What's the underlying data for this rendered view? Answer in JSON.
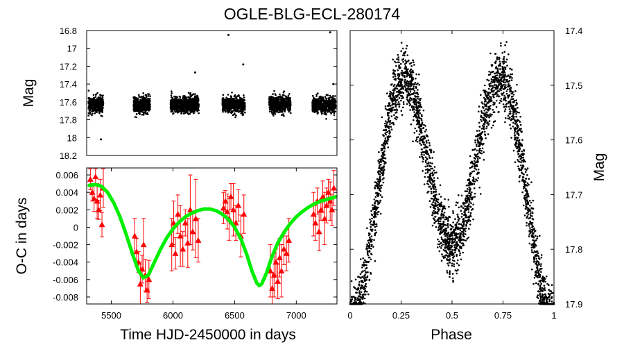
{
  "chart_data": [
    {
      "type": "scatter",
      "panel": "light-curve",
      "title": "OGLE-BLG-ECL-280174",
      "xlabel": "",
      "ylabel": "Mag",
      "xlim": [
        5300,
        7330
      ],
      "ylim": [
        16.8,
        18.2
      ],
      "y_inverted": true,
      "yticks": [
        "16.8",
        "17",
        "17.2",
        "17.4",
        "17.6",
        "17.8",
        "18",
        "18.2"
      ],
      "point_color": "#000000",
      "seasons": [
        {
          "x_start": 5315,
          "x_end": 5435,
          "center_mag": 17.63,
          "spread": 0.1
        },
        {
          "x_start": 5680,
          "x_end": 5815,
          "center_mag": 17.63,
          "spread": 0.1
        },
        {
          "x_start": 5980,
          "x_end": 6210,
          "center_mag": 17.63,
          "spread": 0.1
        },
        {
          "x_start": 6400,
          "x_end": 6585,
          "center_mag": 17.63,
          "spread": 0.1
        },
        {
          "x_start": 6780,
          "x_end": 6955,
          "center_mag": 17.63,
          "spread": 0.1
        },
        {
          "x_start": 7130,
          "x_end": 7320,
          "center_mag": 17.63,
          "spread": 0.1
        }
      ],
      "outliers": [
        {
          "x": 6450,
          "y": 16.85
        },
        {
          "x": 6570,
          "y": 17.18
        },
        {
          "x": 7275,
          "y": 16.82
        },
        {
          "x": 6180,
          "y": 17.27
        },
        {
          "x": 5415,
          "y": 18.02
        },
        {
          "x": 7300,
          "y": 17.4
        }
      ]
    },
    {
      "type": "scatter",
      "panel": "o-c",
      "xlabel": "Time HJD-2450000 in days",
      "ylabel": "O-C in days",
      "xlim": [
        5300,
        7330
      ],
      "ylim": [
        -0.0088,
        0.0068
      ],
      "xticks": [
        "5500",
        "6000",
        "6500",
        "7000"
      ],
      "xtick_values": [
        5500,
        6000,
        6500,
        7000
      ],
      "yticks": [
        "0.006",
        "0.004",
        "0.002",
        "0",
        "-0.002",
        "-0.004",
        "-0.006",
        "-0.008"
      ],
      "ytick_values": [
        0.006,
        0.004,
        0.002,
        0,
        -0.002,
        -0.004,
        -0.006,
        -0.008
      ],
      "points_color": "#ff0000",
      "fit_color": "#00ee00",
      "points": [
        {
          "x": 5330,
          "y": 0.0055,
          "err": 0.0012
        },
        {
          "x": 5345,
          "y": 0.004,
          "err": 0.001
        },
        {
          "x": 5360,
          "y": 0.0033,
          "err": 0.0015
        },
        {
          "x": 5372,
          "y": 0.0058,
          "err": 0.0009
        },
        {
          "x": 5385,
          "y": 0.003,
          "err": 0.002
        },
        {
          "x": 5398,
          "y": 0.002,
          "err": 0.0011
        },
        {
          "x": 5410,
          "y": 0.0037,
          "err": 0.0018
        },
        {
          "x": 5424,
          "y": 0.0003,
          "err": 0.0014
        },
        {
          "x": 5435,
          "y": 0.0045,
          "err": 0.0022
        },
        {
          "x": 5690,
          "y": -0.001,
          "err": 0.002
        },
        {
          "x": 5705,
          "y": -0.0028,
          "err": 0.0015
        },
        {
          "x": 5720,
          "y": -0.004,
          "err": 0.0012
        },
        {
          "x": 5735,
          "y": -0.0065,
          "err": 0.0025
        },
        {
          "x": 5750,
          "y": -0.0048,
          "err": 0.0016
        },
        {
          "x": 5762,
          "y": -0.002,
          "err": 0.003
        },
        {
          "x": 5775,
          "y": -0.0055,
          "err": 0.0018
        },
        {
          "x": 5790,
          "y": -0.0072,
          "err": 0.0014
        },
        {
          "x": 5805,
          "y": -0.006,
          "err": 0.0022
        },
        {
          "x": 5990,
          "y": -0.002,
          "err": 0.003
        },
        {
          "x": 6005,
          "y": 0.0005,
          "err": 0.0025
        },
        {
          "x": 6020,
          "y": -0.003,
          "err": 0.0018
        },
        {
          "x": 6040,
          "y": 0.0015,
          "err": 0.0022
        },
        {
          "x": 6060,
          "y": -0.001,
          "err": 0.0035
        },
        {
          "x": 6080,
          "y": -0.0025,
          "err": 0.002
        },
        {
          "x": 6100,
          "y": 0.0005,
          "err": 0.0015
        },
        {
          "x": 6120,
          "y": -0.0018,
          "err": 0.0028
        },
        {
          "x": 6140,
          "y": 0.002,
          "err": 0.004
        },
        {
          "x": 6160,
          "y": -0.0005,
          "err": 0.0021
        },
        {
          "x": 6185,
          "y": 0.001,
          "err": 0.0045
        },
        {
          "x": 6205,
          "y": -0.0015,
          "err": 0.0025
        },
        {
          "x": 6410,
          "y": 0.0022,
          "err": 0.0018
        },
        {
          "x": 6425,
          "y": 0.003,
          "err": 0.0012
        },
        {
          "x": 6440,
          "y": 0.0018,
          "err": 0.002
        },
        {
          "x": 6455,
          "y": 0.001,
          "err": 0.0025
        },
        {
          "x": 6470,
          "y": 0.0035,
          "err": 0.0015
        },
        {
          "x": 6490,
          "y": 0.002,
          "err": 0.003
        },
        {
          "x": 6510,
          "y": 0.0005,
          "err": 0.002
        },
        {
          "x": 6530,
          "y": 0.0025,
          "err": 0.0018
        },
        {
          "x": 6550,
          "y": -0.001,
          "err": 0.0024
        },
        {
          "x": 6575,
          "y": 0.0015,
          "err": 0.0022
        },
        {
          "x": 6790,
          "y": -0.005,
          "err": 0.003
        },
        {
          "x": 6805,
          "y": -0.007,
          "err": 0.0018
        },
        {
          "x": 6820,
          "y": -0.0055,
          "err": 0.0025
        },
        {
          "x": 6835,
          "y": -0.004,
          "err": 0.0015
        },
        {
          "x": 6850,
          "y": -0.0062,
          "err": 0.002
        },
        {
          "x": 6865,
          "y": -0.0035,
          "err": 0.0022
        },
        {
          "x": 6880,
          "y": -0.005,
          "err": 0.003
        },
        {
          "x": 6900,
          "y": -0.0025,
          "err": 0.0018
        },
        {
          "x": 6920,
          "y": -0.003,
          "err": 0.002
        },
        {
          "x": 6940,
          "y": -0.0015,
          "err": 0.0025
        },
        {
          "x": 7140,
          "y": 0.0015,
          "err": 0.0025
        },
        {
          "x": 7155,
          "y": 0.0005,
          "err": 0.002
        },
        {
          "x": 7170,
          "y": 0.003,
          "err": 0.0015
        },
        {
          "x": 7185,
          "y": -0.0005,
          "err": 0.0022
        },
        {
          "x": 7200,
          "y": 0.002,
          "err": 0.0012
        },
        {
          "x": 7215,
          "y": 0.0035,
          "err": 0.0018
        },
        {
          "x": 7230,
          "y": 0.001,
          "err": 0.003
        },
        {
          "x": 7245,
          "y": 0.0025,
          "err": 0.002
        },
        {
          "x": 7260,
          "y": 0.004,
          "err": 0.0015
        },
        {
          "x": 7275,
          "y": 0.003,
          "err": 0.0022
        },
        {
          "x": 7290,
          "y": 0.002,
          "err": 0.0018
        },
        {
          "x": 7305,
          "y": 0.0045,
          "err": 0.002
        }
      ],
      "fit_curve": {
        "x": [
          5320,
          5370,
          5420,
          5470,
          5520,
          5570,
          5620,
          5670,
          5720,
          5760,
          5800,
          5850,
          5900,
          5950,
          6000,
          6050,
          6100,
          6150,
          6200,
          6250,
          6300,
          6350,
          6400,
          6450,
          6500,
          6550,
          6600,
          6640,
          6680,
          6700,
          6720,
          6760,
          6800,
          6850,
          6900,
          6950,
          7000,
          7050,
          7100,
          7150,
          7200,
          7250,
          7300,
          7320
        ],
        "y": [
          0.0048,
          0.0049,
          0.0047,
          0.004,
          0.0028,
          0.0012,
          -0.0008,
          -0.003,
          -0.005,
          -0.0058,
          -0.0055,
          -0.004,
          -0.0025,
          -0.0012,
          -0.0002,
          0.0006,
          0.0012,
          0.0016,
          0.0019,
          0.0021,
          0.0021,
          0.0019,
          0.0015,
          0.0009,
          0.0,
          -0.0013,
          -0.0032,
          -0.005,
          -0.0064,
          -0.0067,
          -0.0065,
          -0.0052,
          -0.0035,
          -0.0018,
          -0.0006,
          0.0004,
          0.0012,
          0.0018,
          0.0023,
          0.0027,
          0.003,
          0.0032,
          0.0034,
          0.0035
        ]
      }
    },
    {
      "type": "scatter",
      "panel": "phased",
      "xlabel": "Phase",
      "ylabel": "Mag",
      "xlim": [
        0,
        1
      ],
      "ylim": [
        17.4,
        17.9
      ],
      "y_inverted": true,
      "xticks": [
        "0",
        "0.25",
        "0.5",
        "0.75",
        "1"
      ],
      "xtick_values": [
        0,
        0.25,
        0.5,
        0.75,
        1
      ],
      "yticks": [
        "17.4",
        "17.5",
        "17.6",
        "17.7",
        "17.8",
        "17.9"
      ],
      "ytick_values": [
        17.4,
        17.5,
        17.6,
        17.7,
        17.8,
        17.9
      ],
      "point_color": "#000000",
      "model": {
        "mean_mag": 17.675,
        "max_brightness_mag": 17.49,
        "primary_min_mag": 17.86,
        "secondary_min_mag": 17.72,
        "scatter": 0.05
      }
    }
  ]
}
